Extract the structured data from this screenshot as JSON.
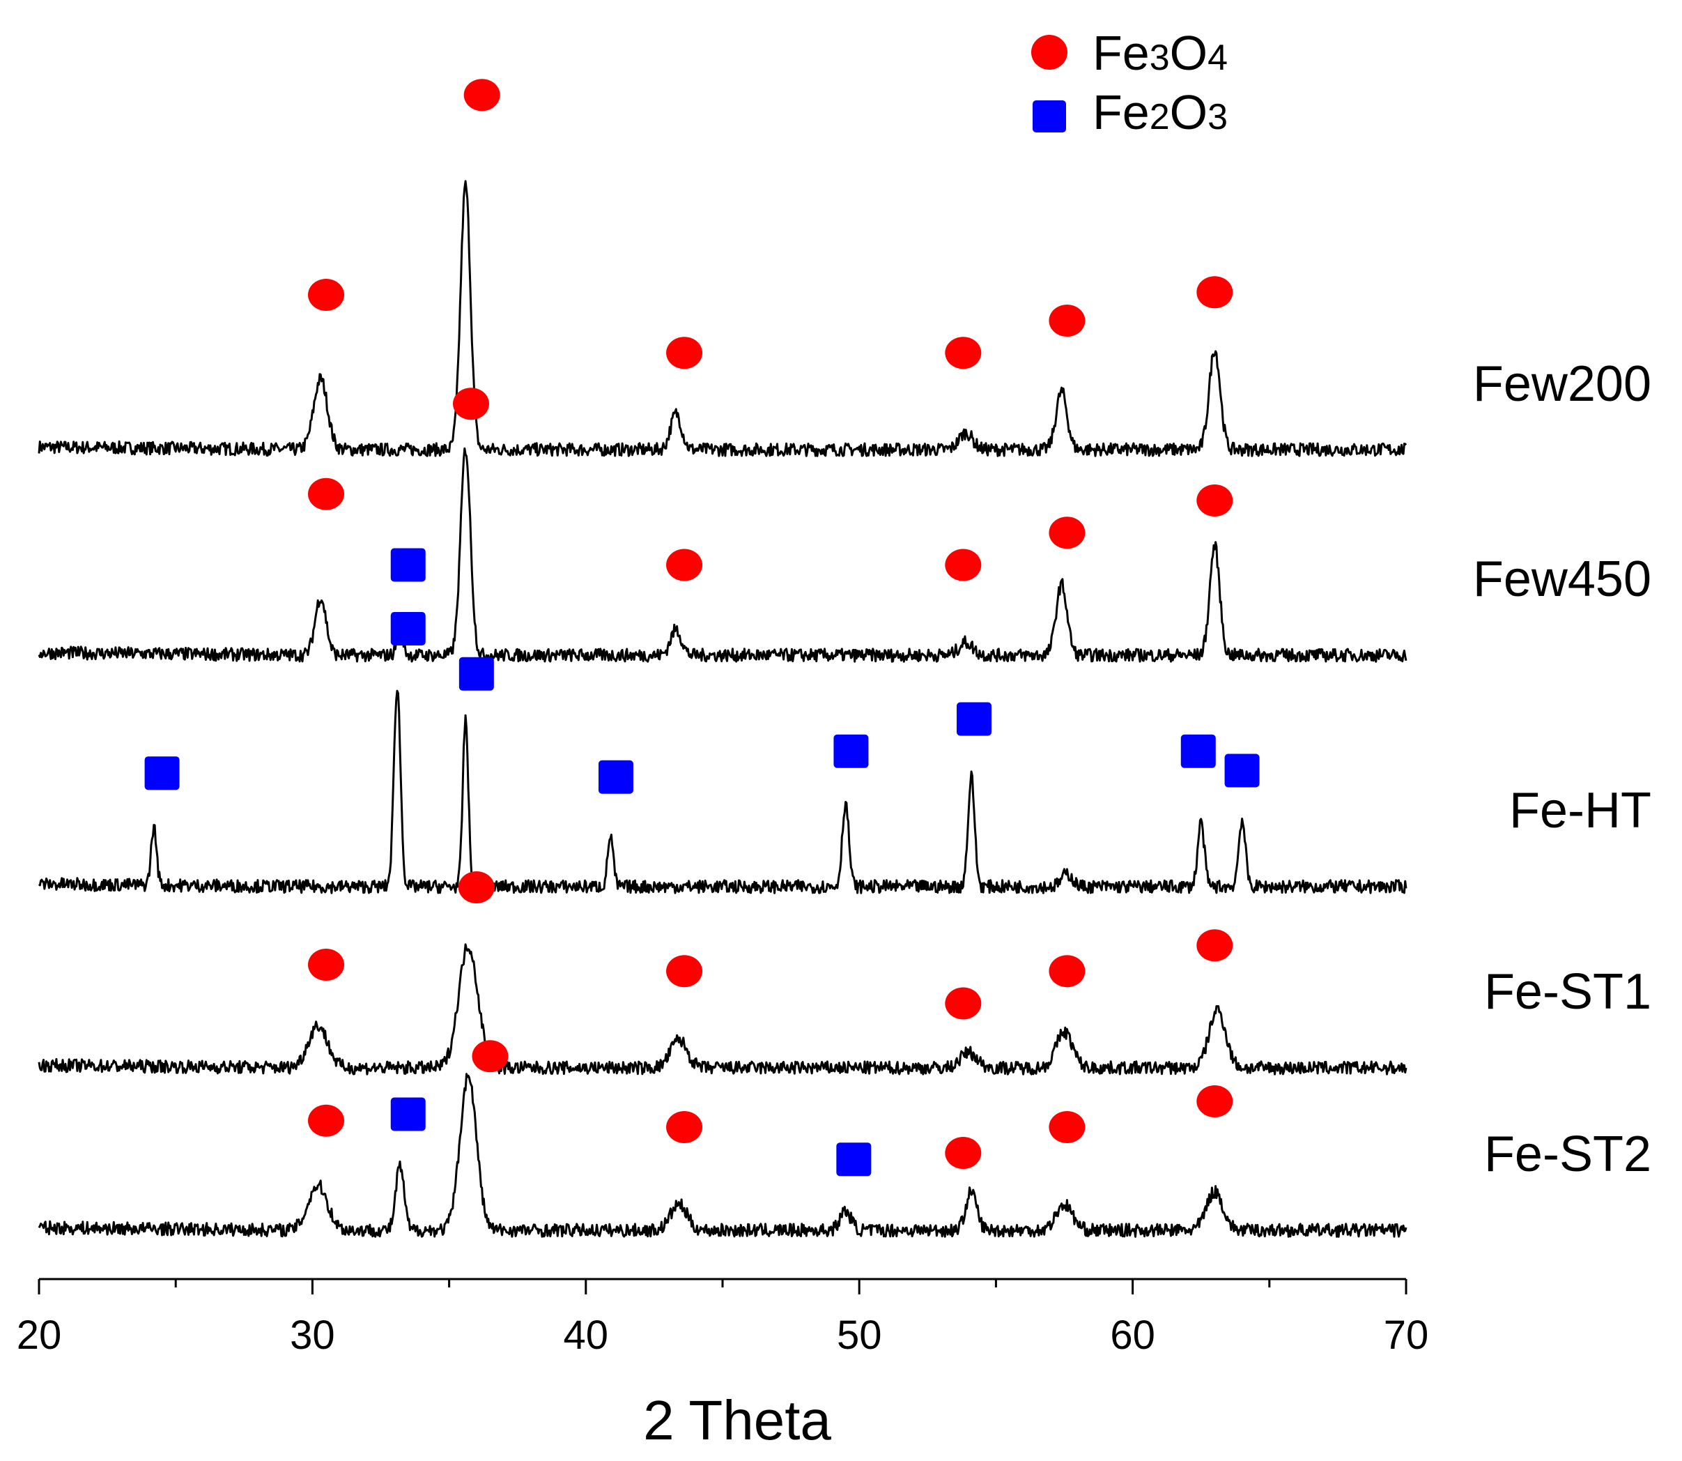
{
  "chart_data": {
    "type": "line",
    "title": "",
    "xlabel": "2 Theta",
    "ylabel": "",
    "xlim": [
      20,
      70
    ],
    "x_ticks": [
      "20",
      "30",
      "40",
      "50",
      "60",
      "70"
    ],
    "x_minor_step": 5,
    "legend": {
      "placement": "top-right",
      "entries": [
        {
          "marker": "circle",
          "color": "#ff0000",
          "main": "Fe",
          "sub1": "3",
          "mid": "O",
          "sub2": "4"
        },
        {
          "marker": "square",
          "color": "#0000ff",
          "main": "Fe",
          "sub1": "2",
          "mid": "O",
          "sub2": "3"
        }
      ]
    },
    "baseline_noise": 0.05,
    "series": [
      {
        "name": "Few200",
        "peaks": [
          [
            30.3,
            0.55,
            0.25
          ],
          [
            35.6,
            2.05,
            0.18
          ],
          [
            43.3,
            0.28,
            0.2
          ],
          [
            53.9,
            0.13,
            0.25
          ],
          [
            57.4,
            0.45,
            0.2
          ],
          [
            63.0,
            0.78,
            0.2
          ]
        ],
        "markers": [
          {
            "type": "circle",
            "x": 30.5,
            "y": 1.2
          },
          {
            "type": "circle",
            "x": 36.2,
            "y": 2.75
          },
          {
            "type": "circle",
            "x": 43.6,
            "y": 0.75
          },
          {
            "type": "circle",
            "x": 53.8,
            "y": 0.75
          },
          {
            "type": "circle",
            "x": 57.6,
            "y": 1.0
          },
          {
            "type": "circle",
            "x": 63.0,
            "y": 1.22
          }
        ]
      },
      {
        "name": "Few450",
        "peaks": [
          [
            30.3,
            0.45,
            0.2
          ],
          [
            33.2,
            0.18,
            0.12
          ],
          [
            35.6,
            1.6,
            0.18
          ],
          [
            43.3,
            0.2,
            0.2
          ],
          [
            53.9,
            0.1,
            0.25
          ],
          [
            57.4,
            0.55,
            0.2
          ],
          [
            63.0,
            0.85,
            0.18
          ]
        ],
        "markers": [
          {
            "type": "circle",
            "x": 30.5,
            "y": 1.25
          },
          {
            "type": "square",
            "x": 33.5,
            "y": 0.7
          },
          {
            "type": "circle",
            "x": 35.8,
            "y": 1.95
          },
          {
            "type": "circle",
            "x": 43.6,
            "y": 0.7
          },
          {
            "type": "circle",
            "x": 53.8,
            "y": 0.7
          },
          {
            "type": "circle",
            "x": 57.6,
            "y": 0.95
          },
          {
            "type": "circle",
            "x": 63.0,
            "y": 1.2
          }
        ]
      },
      {
        "name": "Fe-HT",
        "peaks": [
          [
            24.2,
            0.45,
            0.1
          ],
          [
            33.1,
            1.55,
            0.12
          ],
          [
            35.6,
            1.3,
            0.1
          ],
          [
            40.9,
            0.4,
            0.1
          ],
          [
            49.5,
            0.65,
            0.12
          ],
          [
            54.1,
            0.85,
            0.12
          ],
          [
            57.6,
            0.1,
            0.2
          ],
          [
            62.5,
            0.5,
            0.12
          ],
          [
            64.0,
            0.52,
            0.12
          ]
        ],
        "markers": [
          {
            "type": "square",
            "x": 24.5,
            "y": 0.88
          },
          {
            "type": "square",
            "x": 33.5,
            "y": 2.0
          },
          {
            "type": "square",
            "x": 36.0,
            "y": 1.65
          },
          {
            "type": "square",
            "x": 41.1,
            "y": 0.85
          },
          {
            "type": "square",
            "x": 49.7,
            "y": 1.05
          },
          {
            "type": "square",
            "x": 54.2,
            "y": 1.3
          },
          {
            "type": "square",
            "x": 62.4,
            "y": 1.05
          },
          {
            "type": "square",
            "x": 64.0,
            "y": 0.9
          }
        ]
      },
      {
        "name": "Fe-ST1",
        "peaks": [
          [
            30.2,
            0.33,
            0.35
          ],
          [
            35.7,
            0.95,
            0.35
          ],
          [
            43.4,
            0.22,
            0.3
          ],
          [
            54.0,
            0.12,
            0.3
          ],
          [
            57.5,
            0.28,
            0.3
          ],
          [
            63.1,
            0.45,
            0.3
          ]
        ],
        "markers": [
          {
            "type": "circle",
            "x": 30.5,
            "y": 0.8
          },
          {
            "type": "circle",
            "x": 36.0,
            "y": 1.4
          },
          {
            "type": "circle",
            "x": 43.6,
            "y": 0.75
          },
          {
            "type": "circle",
            "x": 53.8,
            "y": 0.5
          },
          {
            "type": "circle",
            "x": 57.6,
            "y": 0.75
          },
          {
            "type": "circle",
            "x": 63.0,
            "y": 0.95
          }
        ]
      },
      {
        "name": "Fe-ST2",
        "peaks": [
          [
            30.2,
            0.35,
            0.35
          ],
          [
            33.2,
            0.5,
            0.15
          ],
          [
            35.7,
            1.2,
            0.3
          ],
          [
            43.4,
            0.2,
            0.3
          ],
          [
            49.5,
            0.15,
            0.2
          ],
          [
            54.1,
            0.3,
            0.2
          ],
          [
            57.5,
            0.2,
            0.3
          ],
          [
            63.0,
            0.3,
            0.3
          ]
        ],
        "markers": [
          {
            "type": "circle",
            "x": 30.5,
            "y": 0.85
          },
          {
            "type": "square",
            "x": 33.5,
            "y": 0.9
          },
          {
            "type": "circle",
            "x": 36.5,
            "y": 1.35
          },
          {
            "type": "circle",
            "x": 43.6,
            "y": 0.8
          },
          {
            "type": "square",
            "x": 49.8,
            "y": 0.55
          },
          {
            "type": "circle",
            "x": 53.8,
            "y": 0.6
          },
          {
            "type": "circle",
            "x": 57.6,
            "y": 0.8
          },
          {
            "type": "circle",
            "x": 63.0,
            "y": 1.0
          }
        ]
      }
    ]
  }
}
